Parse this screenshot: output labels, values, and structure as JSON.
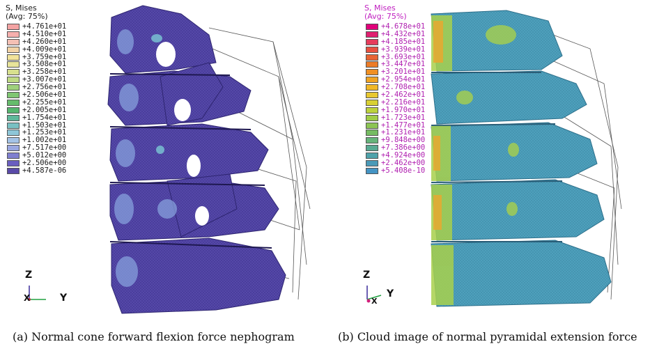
{
  "panel_a": {
    "legend_title": "S, Mises\n(Avg: 75%)",
    "legend_title_color": "#1a1a1a",
    "legend_value_color": "#1a1a1a",
    "legend_values": [
      "+4.761e+01",
      "+4.510e+01",
      "+4.260e+01",
      "+4.009e+01",
      "+3.759e+01",
      "+3.508e+01",
      "+3.258e+01",
      "+3.007e+01",
      "+2.756e+01",
      "+2.506e+01",
      "+2.255e+01",
      "+2.005e+01",
      "+1.754e+01",
      "+1.503e+01",
      "+1.253e+01",
      "+1.002e+01",
      "+7.517e+00",
      "+5.012e+00",
      "+2.506e+00",
      "+4.587e-06"
    ],
    "legend_colors": [
      "#f4a3a3",
      "#f6b0ae",
      "#f4c0b4",
      "#f2d3a6",
      "#f1e39a",
      "#e8e49a",
      "#d7e08e",
      "#bfda84",
      "#9fd07c",
      "#7fc672",
      "#66bc6c",
      "#56b56e",
      "#5fb79a",
      "#79c0c2",
      "#8ec6d8",
      "#a4c3e6",
      "#9aa7e0",
      "#7f7fcf",
      "#6a5ec0",
      "#5a4aa8"
    ],
    "axis_z": "Z",
    "axis_y": "Y",
    "axis_x": "X",
    "caption": "(a) Normal cone forward flexion force nephogram"
  },
  "panel_b": {
    "legend_title": "S, Mises\n(Avg: 75%)",
    "legend_title_color": "#c020c0",
    "legend_value_color": "#b020b0",
    "legend_values": [
      "+4.678e+01",
      "+4.432e+01",
      "+4.185e+01",
      "+3.939e+01",
      "+3.693e+01",
      "+3.447e+01",
      "+3.201e+01",
      "+2.954e+01",
      "+2.708e+01",
      "+2.462e+01",
      "+2.216e+01",
      "+1.970e+01",
      "+1.723e+01",
      "+1.477e+01",
      "+1.231e+01",
      "+9.848e+00",
      "+7.386e+00",
      "+4.924e+00",
      "+2.462e+00",
      "+5.408e-10"
    ],
    "legend_colors": [
      "#e0007a",
      "#e02070",
      "#e63c5c",
      "#e85040",
      "#e86434",
      "#ec7c28",
      "#f09024",
      "#f0a424",
      "#f0b828",
      "#e8c830",
      "#d8d034",
      "#bcd23c",
      "#a0cc46",
      "#8cc454",
      "#76bc62",
      "#66b47a",
      "#58aa92",
      "#4ea2aa",
      "#4a9ab8",
      "#4494c4"
    ],
    "axis_z": "Z",
    "axis_y": "Y",
    "axis_x": "X",
    "caption": "(b) Cloud image of normal pyramidal extension force"
  }
}
